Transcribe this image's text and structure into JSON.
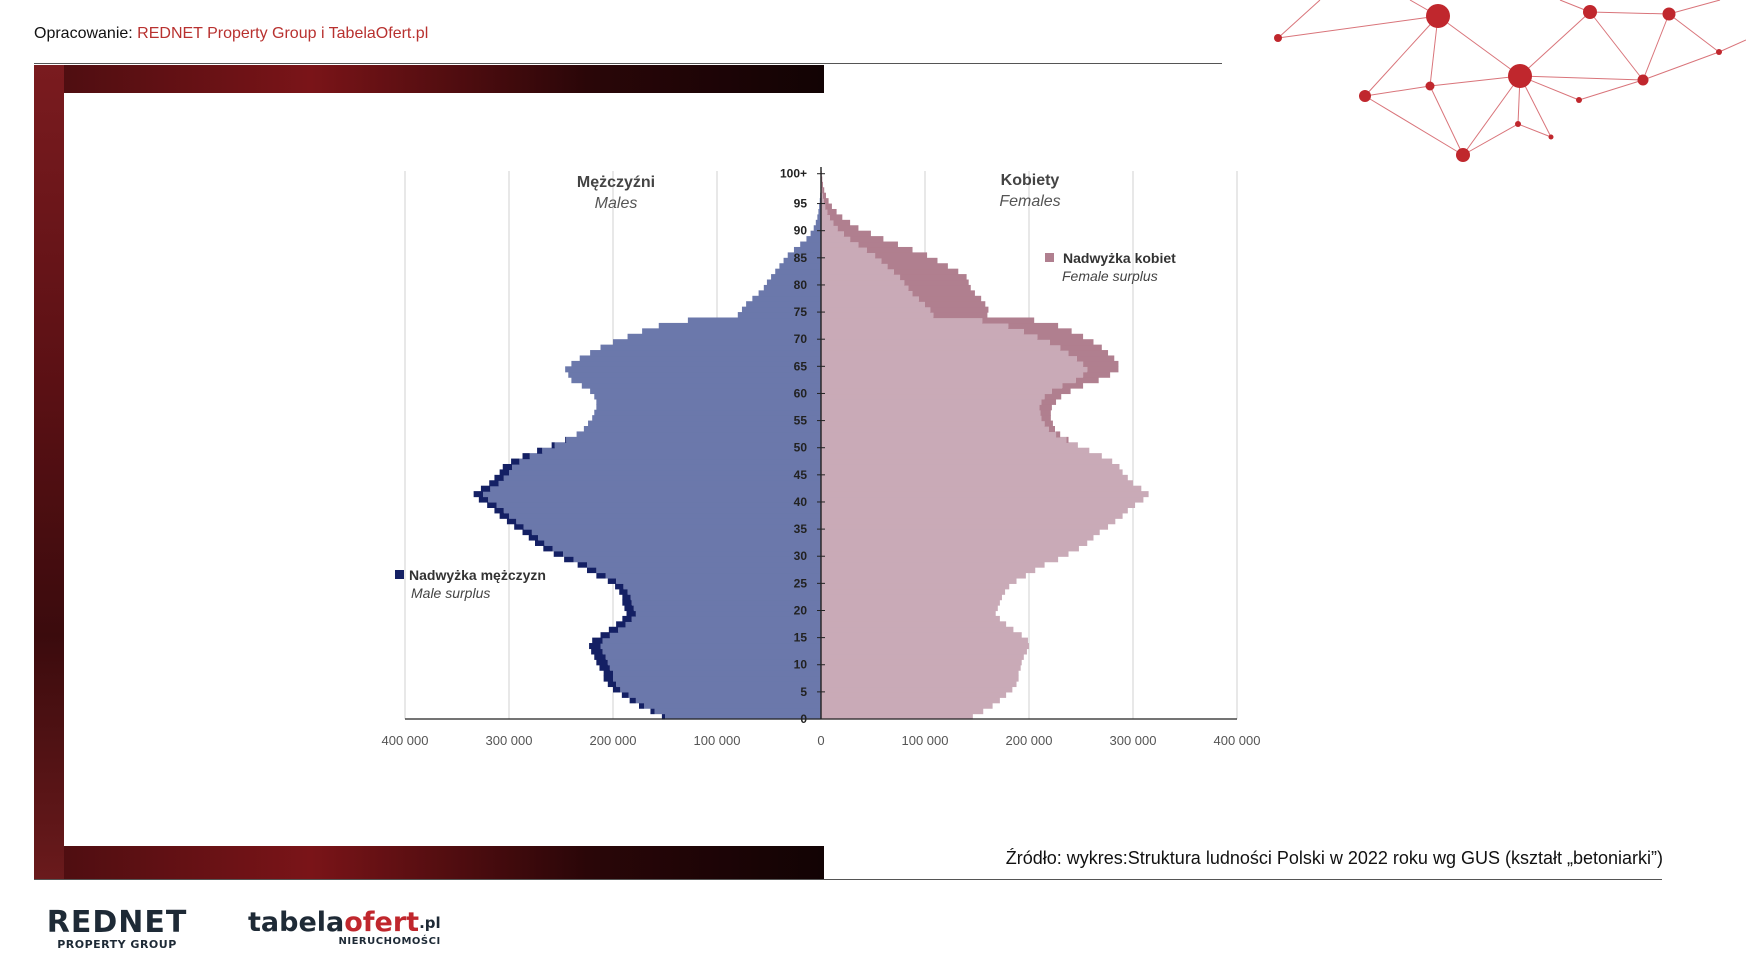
{
  "header": {
    "credit_label": "Opracowanie: ",
    "credit_org": "REDNET Property Group i TabelaOfert.pl"
  },
  "footer": {
    "source": "Źródło: wykres:Struktura ludności Polski w 2022 roku wg GUS (kształt „betoniarki”)"
  },
  "logos": {
    "rednet_main": "REDNET",
    "rednet_sub": "PROPERTY GROUP",
    "tabela_a": "tabela",
    "tabela_b": "ofert",
    "tabela_pl": ".pl",
    "tabela_sub": "NIERUCHOMOŚCI"
  },
  "colors": {
    "male_base": "#6b78ab",
    "male_surplus": "#142064",
    "female_base": "#c9aab7",
    "female_surplus": "#b07f8f",
    "accent": "#c0272d"
  },
  "chart_data": {
    "type": "bar",
    "orientation": "horizontal-pyramid",
    "title": "",
    "left_heading": "Mężczyźni",
    "left_subheading": "Males",
    "right_heading": "Kobiety",
    "right_subheading": "Females",
    "legend_male": "Nadwyżka mężczyzn",
    "legend_male_en": "Male surplus",
    "legend_female": "Nadwyżka kobiet",
    "legend_female_en": "Female surplus",
    "xlim": [
      -400000,
      400000
    ],
    "x_ticks": [
      -400000,
      -300000,
      -200000,
      -100000,
      0,
      100000,
      200000,
      300000,
      400000
    ],
    "x_tick_labels": [
      "400 000",
      "300 000",
      "200 000",
      "100 000",
      "0",
      "100 000",
      "200 000",
      "300 000",
      "400 000"
    ],
    "y_ticks": [
      0,
      5,
      10,
      15,
      20,
      25,
      30,
      35,
      40,
      45,
      50,
      55,
      60,
      65,
      70,
      75,
      80,
      85,
      90,
      95,
      100
    ],
    "y_tick_labels": [
      "0",
      "5",
      "10",
      "15",
      "20",
      "25",
      "30",
      "35",
      "40",
      "45",
      "50",
      "55",
      "60",
      "65",
      "70",
      "75",
      "80",
      "85",
      "90",
      "95",
      "100+"
    ],
    "series": [
      {
        "name": "Mężczyźni",
        "values": [
          150000,
          160000,
          170000,
          178000,
          185000,
          193000,
          197000,
          200000,
          200000,
          203000,
          205000,
          207000,
          210000,
          212000,
          210000,
          203000,
          195000,
          188000,
          182000,
          178000,
          180000,
          182000,
          183000,
          186000,
          190000,
          197000,
          207000,
          216000,
          225000,
          238000,
          248000,
          258000,
          266000,
          272000,
          278000,
          286000,
          293000,
          300000,
          305000,
          312000,
          320000,
          325000,
          318000,
          310000,
          305000,
          300000,
          297000,
          290000,
          280000,
          268000,
          256000,
          245000,
          235000,
          228000,
          224000,
          220000,
          218000,
          216000,
          216000,
          218000,
          222000,
          230000,
          240000,
          243000,
          246000,
          240000,
          232000,
          222000,
          212000,
          200000,
          186000,
          172000,
          156000,
          128000,
          80000,
          76000,
          72000,
          66000,
          60000,
          55000,
          52000,
          48000,
          44000,
          40000,
          36000,
          32000,
          26000,
          20000,
          14000,
          10000,
          7000,
          5000,
          3500,
          2500,
          1800,
          1200,
          800,
          500,
          300,
          200,
          150
        ]
      },
      {
        "name": "Kobiety",
        "values": [
          146000,
          156000,
          165000,
          172000,
          178000,
          184000,
          188000,
          190000,
          190000,
          192000,
          193000,
          195000,
          198000,
          200000,
          199000,
          193000,
          185000,
          178000,
          172000,
          168000,
          170000,
          172000,
          174000,
          177000,
          181000,
          188000,
          197000,
          206000,
          215000,
          228000,
          238000,
          248000,
          256000,
          262000,
          268000,
          276000,
          283000,
          290000,
          295000,
          302000,
          310000,
          315000,
          308000,
          300000,
          295000,
          290000,
          287000,
          280000,
          270000,
          258000,
          247000,
          236000,
          226000,
          219000,
          215000,
          212000,
          211000,
          210000,
          212000,
          215000,
          222000,
          232000,
          245000,
          252000,
          256000,
          252000,
          246000,
          238000,
          230000,
          220000,
          208000,
          195000,
          180000,
          155000,
          108000,
          105000,
          100000,
          94000,
          88000,
          84000,
          80000,
          76000,
          70000,
          64000,
          58000,
          52000,
          44000,
          36000,
          28000,
          22000,
          16000,
          12000,
          8500,
          6000,
          4000,
          2800,
          1800,
          1100,
          700,
          400,
          250
        ]
      },
      {
        "name": "Nadwyżka mężczyzn",
        "values": [
          3000,
          4000,
          5000,
          6000,
          6500,
          7000,
          8000,
          9000,
          9000,
          10000,
          11000,
          11000,
          11000,
          11000,
          10000,
          9000,
          9000,
          9000,
          9000,
          9000,
          9000,
          9000,
          8000,
          8000,
          8000,
          8000,
          9000,
          9000,
          9000,
          9000,
          9000,
          9000,
          9000,
          9000,
          9000,
          9000,
          9000,
          9000,
          9000,
          9000,
          9000,
          9000,
          9000,
          9000,
          9000,
          9000,
          9000,
          8000,
          7000,
          5000,
          3000,
          1000,
          0,
          0,
          0,
          0,
          0,
          0,
          0,
          0,
          0,
          0,
          0,
          0,
          0,
          0,
          0,
          0,
          0,
          0,
          0,
          0,
          0,
          0,
          0,
          0,
          0,
          0,
          0,
          0,
          0,
          0,
          0,
          0,
          0,
          0,
          0,
          0,
          0,
          0,
          0,
          0,
          0,
          0,
          0,
          0,
          0,
          0,
          0,
          0,
          0
        ]
      },
      {
        "name": "Nadwyżka kobiet",
        "values": [
          0,
          0,
          0,
          0,
          0,
          0,
          0,
          0,
          0,
          0,
          0,
          0,
          0,
          0,
          0,
          0,
          0,
          0,
          0,
          0,
          0,
          0,
          0,
          0,
          0,
          0,
          0,
          0,
          0,
          0,
          0,
          0,
          0,
          0,
          0,
          0,
          0,
          0,
          0,
          0,
          0,
          0,
          0,
          0,
          0,
          0,
          0,
          0,
          0,
          0,
          0,
          2000,
          4000,
          6000,
          8000,
          9000,
          10000,
          12000,
          14000,
          16000,
          18000,
          20000,
          22000,
          26000,
          30000,
          34000,
          36000,
          38000,
          40000,
          42000,
          44000,
          46000,
          48000,
          50000,
          52000,
          56000,
          58000,
          60000,
          60000,
          60000,
          62000,
          64000,
          62000,
          58000,
          54000,
          50000,
          44000,
          38000,
          32000,
          26000,
          20000,
          16000,
          12000,
          9000,
          6500,
          4500,
          3000,
          2000,
          1200,
          800,
          500
        ]
      }
    ]
  }
}
